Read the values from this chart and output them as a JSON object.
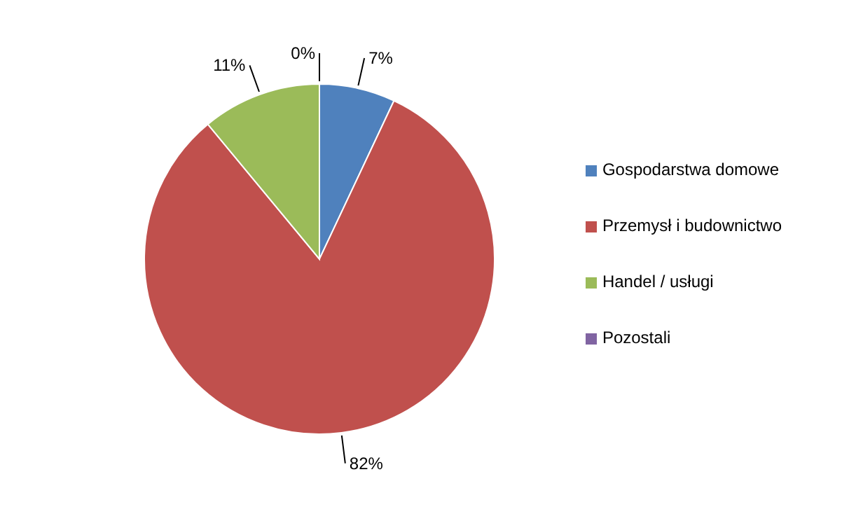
{
  "chart_data": {
    "type": "pie",
    "categories": [
      "Gospodarstwa domowe",
      "Przemysł i budownictwo",
      "Handel / usługi",
      "Pozostali"
    ],
    "values": [
      7,
      82,
      11,
      0
    ],
    "colors": [
      "#4f81bd",
      "#c0504d",
      "#9bbb59",
      "#8064a2"
    ],
    "value_labels": [
      "7%",
      "82%",
      "11%",
      "0%"
    ],
    "legend": "right"
  }
}
